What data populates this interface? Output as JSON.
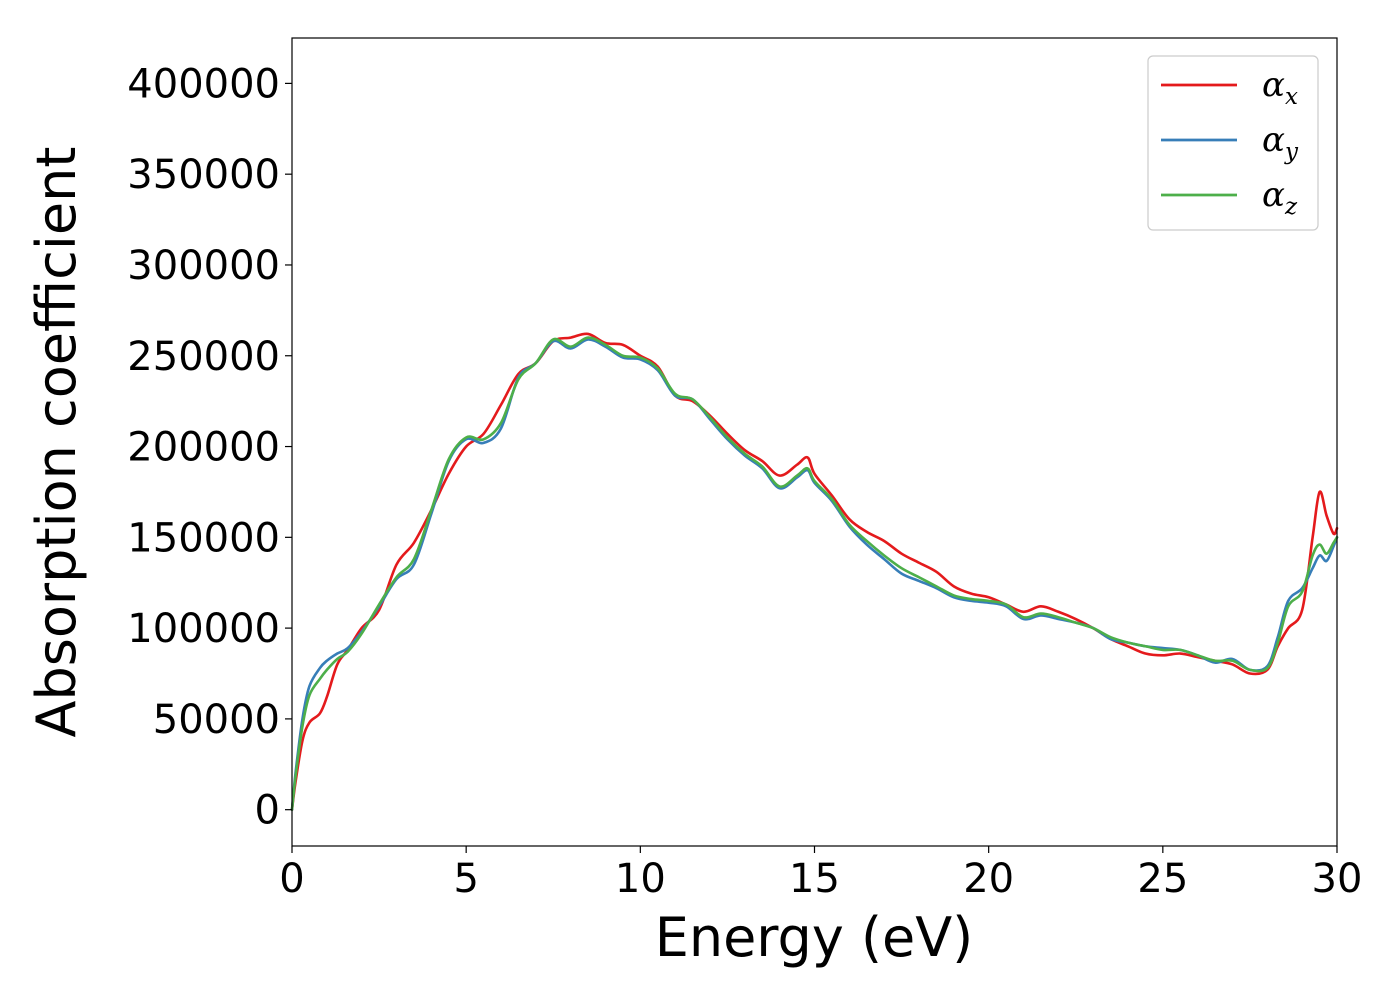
{
  "chart_data": {
    "type": "line",
    "xlabel": "Energy (eV)",
    "ylabel": "Absorption coefficient",
    "xlim": [
      0,
      30
    ],
    "ylim": [
      -20000,
      425000
    ],
    "xticks": [
      0,
      5,
      10,
      15,
      20,
      25,
      30
    ],
    "xtick_labels": [
      "0",
      "5",
      "10",
      "15",
      "20",
      "25",
      "30"
    ],
    "yticks": [
      0,
      50000,
      100000,
      150000,
      200000,
      250000,
      300000,
      350000,
      400000
    ],
    "ytick_labels": [
      "0",
      "50000",
      "100000",
      "150000",
      "200000",
      "250000",
      "300000",
      "350000",
      "400000"
    ],
    "grid": false,
    "legend_position": "top-right",
    "series": [
      {
        "name": "α_x",
        "symbol": "α",
        "subscript": "x",
        "color": "#e41a1c",
        "x": [
          0,
          0.1,
          0.3,
          0.5,
          0.8,
          1.0,
          1.3,
          1.6,
          2.0,
          2.5,
          3.0,
          3.5,
          4.0,
          4.5,
          5.0,
          5.5,
          6.0,
          6.5,
          7.0,
          7.5,
          8.0,
          8.5,
          9.0,
          9.5,
          10.0,
          10.5,
          11.0,
          11.5,
          12.0,
          12.5,
          13.0,
          13.5,
          14.0,
          14.5,
          14.8,
          15.0,
          15.5,
          16.0,
          16.5,
          17.0,
          17.5,
          18.0,
          18.5,
          19.0,
          19.5,
          20.0,
          20.5,
          21.0,
          21.5,
          22.0,
          22.5,
          23.0,
          23.5,
          24.0,
          24.5,
          25.0,
          25.5,
          26.0,
          26.5,
          27.0,
          27.5,
          28.0,
          28.3,
          28.6,
          29.0,
          29.3,
          29.5,
          29.7,
          29.9,
          30.0
        ],
        "y": [
          0,
          15000,
          38000,
          48000,
          53000,
          62000,
          80000,
          88000,
          100000,
          110000,
          135000,
          147000,
          165000,
          185000,
          200000,
          207000,
          223000,
          240000,
          246000,
          258000,
          260000,
          262000,
          257000,
          256000,
          250000,
          244000,
          228000,
          225000,
          217000,
          207000,
          198000,
          192000,
          184000,
          190000,
          194000,
          185000,
          173000,
          160000,
          153000,
          148000,
          141000,
          136000,
          131000,
          123000,
          119000,
          117000,
          113000,
          109000,
          112000,
          109000,
          105000,
          100000,
          94000,
          90000,
          86000,
          85000,
          86000,
          84000,
          82000,
          80000,
          75000,
          77000,
          90000,
          100000,
          110000,
          150000,
          175000,
          162000,
          152000,
          155000
        ]
      },
      {
        "name": "α_y",
        "symbol": "α",
        "subscript": "y",
        "color": "#377eb8",
        "x": [
          0,
          0.1,
          0.3,
          0.5,
          0.8,
          1.0,
          1.3,
          1.6,
          2.0,
          2.5,
          3.0,
          3.5,
          4.0,
          4.5,
          5.0,
          5.5,
          6.0,
          6.5,
          7.0,
          7.5,
          8.0,
          8.5,
          9.0,
          9.5,
          10.0,
          10.5,
          11.0,
          11.5,
          12.0,
          12.5,
          13.0,
          13.5,
          14.0,
          14.5,
          14.8,
          15.0,
          15.5,
          16.0,
          16.5,
          17.0,
          17.5,
          18.0,
          18.5,
          19.0,
          19.5,
          20.0,
          20.5,
          21.0,
          21.5,
          22.0,
          22.5,
          23.0,
          23.5,
          24.0,
          24.5,
          25.0,
          25.5,
          26.0,
          26.5,
          27.0,
          27.5,
          28.0,
          28.3,
          28.6,
          29.0,
          29.3,
          29.5,
          29.7,
          29.9,
          30.0
        ],
        "y": [
          0,
          20000,
          50000,
          68000,
          78000,
          82000,
          86000,
          89000,
          98000,
          112000,
          127000,
          135000,
          163000,
          192000,
          204000,
          202000,
          210000,
          238000,
          246000,
          258000,
          254000,
          259000,
          255000,
          249000,
          248000,
          242000,
          228000,
          226000,
          215000,
          204000,
          195000,
          188000,
          177000,
          183000,
          187000,
          180000,
          170000,
          156000,
          146000,
          138000,
          130000,
          126000,
          122000,
          117000,
          115000,
          114000,
          112000,
          105000,
          107000,
          105000,
          103000,
          100000,
          94000,
          92000,
          90000,
          89000,
          88000,
          85000,
          81000,
          83000,
          77000,
          79000,
          95000,
          115000,
          122000,
          133000,
          140000,
          137000,
          145000,
          150000
        ]
      },
      {
        "name": "α_z",
        "symbol": "α",
        "subscript": "z",
        "color": "#4daf4a",
        "x": [
          0,
          0.1,
          0.3,
          0.5,
          0.8,
          1.0,
          1.3,
          1.6,
          2.0,
          2.5,
          3.0,
          3.5,
          4.0,
          4.5,
          5.0,
          5.5,
          6.0,
          6.5,
          7.0,
          7.5,
          8.0,
          8.5,
          9.0,
          9.5,
          10.0,
          10.5,
          11.0,
          11.5,
          12.0,
          12.5,
          13.0,
          13.5,
          14.0,
          14.5,
          14.8,
          15.0,
          15.5,
          16.0,
          16.5,
          17.0,
          17.5,
          18.0,
          18.5,
          19.0,
          19.5,
          20.0,
          20.5,
          21.0,
          21.5,
          22.0,
          22.5,
          23.0,
          23.5,
          24.0,
          24.5,
          25.0,
          25.5,
          26.0,
          26.5,
          27.0,
          27.5,
          28.0,
          28.3,
          28.6,
          29.0,
          29.3,
          29.5,
          29.7,
          29.9,
          30.0
        ],
        "y": [
          0,
          18000,
          46000,
          63000,
          72000,
          77000,
          83000,
          87000,
          97000,
          113000,
          128000,
          138000,
          165000,
          193000,
          205000,
          204000,
          213000,
          237000,
          246000,
          259000,
          255000,
          260000,
          256000,
          250000,
          249000,
          243000,
          229000,
          226000,
          216000,
          205000,
          196000,
          189000,
          178000,
          184000,
          188000,
          181000,
          171000,
          157000,
          148000,
          140000,
          133000,
          128000,
          123000,
          118000,
          116000,
          115000,
          113000,
          106000,
          108000,
          106000,
          103000,
          100000,
          95000,
          92000,
          90000,
          88000,
          88000,
          85000,
          82000,
          82000,
          77000,
          78000,
          92000,
          112000,
          120000,
          140000,
          146000,
          141000,
          147000,
          150000
        ]
      }
    ]
  }
}
